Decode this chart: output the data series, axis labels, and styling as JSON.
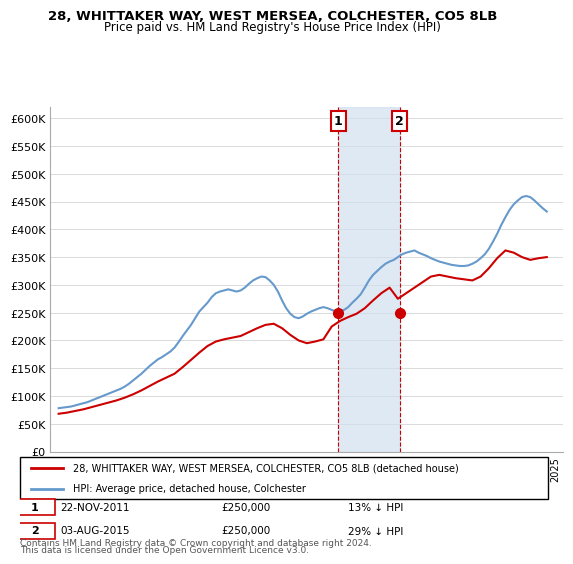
{
  "title": "28, WHITTAKER WAY, WEST MERSEA, COLCHESTER, CO5 8LB",
  "subtitle": "Price paid vs. HM Land Registry's House Price Index (HPI)",
  "ylabel_ticks": [
    "£0",
    "£50K",
    "£100K",
    "£150K",
    "£200K",
    "£250K",
    "£300K",
    "£350K",
    "£400K",
    "£450K",
    "£500K",
    "£550K",
    "£600K"
  ],
  "ytick_vals": [
    0,
    50000,
    100000,
    150000,
    200000,
    250000,
    300000,
    350000,
    400000,
    450000,
    500000,
    550000,
    600000
  ],
  "ylim": [
    0,
    620000
  ],
  "xlim_start": 1994.5,
  "xlim_end": 2025.5,
  "hpi_color": "#6699cc",
  "price_color": "#cc0000",
  "sale1_date": "22-NOV-2011",
  "sale1_price": 250000,
  "sale1_label": "1",
  "sale1_x": 2011.9,
  "sale2_date": "03-AUG-2015",
  "sale2_price": 250000,
  "sale2_label": "2",
  "sale2_x": 2015.6,
  "legend_entry1": "28, WHITTAKER WAY, WEST MERSEA, COLCHESTER, CO5 8LB (detached house)",
  "legend_entry2": "HPI: Average price, detached house, Colchester",
  "footnote1": "Contains HM Land Registry data © Crown copyright and database right 2024.",
  "footnote2": "This data is licensed under the Open Government Licence v3.0.",
  "info1": "1    22-NOV-2011    £250,000    13% ↓ HPI",
  "info2": "2    03-AUG-2015    £250,000    29% ↓ HPI",
  "hpi_data_x": [
    1995,
    1995.25,
    1995.5,
    1995.75,
    1996,
    1996.25,
    1996.5,
    1996.75,
    1997,
    1997.25,
    1997.5,
    1997.75,
    1998,
    1998.25,
    1998.5,
    1998.75,
    1999,
    1999.25,
    1999.5,
    1999.75,
    2000,
    2000.25,
    2000.5,
    2000.75,
    2001,
    2001.25,
    2001.5,
    2001.75,
    2002,
    2002.25,
    2002.5,
    2002.75,
    2003,
    2003.25,
    2003.5,
    2003.75,
    2004,
    2004.25,
    2004.5,
    2004.75,
    2005,
    2005.25,
    2005.5,
    2005.75,
    2006,
    2006.25,
    2006.5,
    2006.75,
    2007,
    2007.25,
    2007.5,
    2007.75,
    2008,
    2008.25,
    2008.5,
    2008.75,
    2009,
    2009.25,
    2009.5,
    2009.75,
    2010,
    2010.25,
    2010.5,
    2010.75,
    2011,
    2011.25,
    2011.5,
    2011.75,
    2012,
    2012.25,
    2012.5,
    2012.75,
    2013,
    2013.25,
    2013.5,
    2013.75,
    2014,
    2014.25,
    2014.5,
    2014.75,
    2015,
    2015.25,
    2015.5,
    2015.75,
    2016,
    2016.25,
    2016.5,
    2016.75,
    2017,
    2017.25,
    2017.5,
    2017.75,
    2018,
    2018.25,
    2018.5,
    2018.75,
    2019,
    2019.25,
    2019.5,
    2019.75,
    2020,
    2020.25,
    2020.5,
    2020.75,
    2021,
    2021.25,
    2021.5,
    2021.75,
    2022,
    2022.25,
    2022.5,
    2022.75,
    2023,
    2023.25,
    2023.5,
    2023.75,
    2024,
    2024.25,
    2024.5
  ],
  "hpi_data_y": [
    78000,
    79000,
    80000,
    81000,
    83000,
    85000,
    87000,
    89000,
    92000,
    95000,
    98000,
    101000,
    104000,
    107000,
    110000,
    113000,
    117000,
    122000,
    128000,
    134000,
    140000,
    147000,
    154000,
    160000,
    166000,
    170000,
    175000,
    180000,
    187000,
    197000,
    208000,
    218000,
    228000,
    240000,
    252000,
    260000,
    268000,
    278000,
    285000,
    288000,
    290000,
    292000,
    290000,
    288000,
    290000,
    295000,
    302000,
    308000,
    312000,
    315000,
    314000,
    308000,
    300000,
    288000,
    272000,
    258000,
    248000,
    242000,
    240000,
    243000,
    248000,
    252000,
    255000,
    258000,
    260000,
    258000,
    255000,
    252000,
    252000,
    255000,
    260000,
    268000,
    275000,
    283000,
    295000,
    308000,
    318000,
    325000,
    332000,
    338000,
    342000,
    345000,
    350000,
    355000,
    358000,
    360000,
    362000,
    358000,
    355000,
    352000,
    348000,
    345000,
    342000,
    340000,
    338000,
    336000,
    335000,
    334000,
    334000,
    335000,
    338000,
    342000,
    348000,
    355000,
    365000,
    378000,
    392000,
    408000,
    422000,
    435000,
    445000,
    452000,
    458000,
    460000,
    458000,
    452000,
    445000,
    438000,
    432000
  ],
  "price_data_x": [
    1995,
    1995.5,
    1996,
    1996.5,
    1997,
    1997.5,
    1998,
    1998.5,
    1999,
    1999.5,
    2000,
    2000.5,
    2001,
    2001.5,
    2002,
    2002.5,
    2003,
    2003.5,
    2004,
    2004.5,
    2005,
    2005.5,
    2006,
    2006.5,
    2007,
    2007.5,
    2008,
    2008.5,
    2009,
    2009.5,
    2010,
    2010.5,
    2011,
    2011.5,
    2012,
    2012.5,
    2013,
    2013.5,
    2014,
    2014.5,
    2015,
    2015.5,
    2016,
    2016.5,
    2017,
    2017.5,
    2018,
    2018.5,
    2019,
    2019.5,
    2020,
    2020.5,
    2021,
    2021.5,
    2022,
    2022.5,
    2023,
    2023.5,
    2024,
    2024.5
  ],
  "price_data_y": [
    68000,
    70000,
    73000,
    76000,
    80000,
    84000,
    88000,
    92000,
    97000,
    103000,
    110000,
    118000,
    126000,
    133000,
    140000,
    152000,
    165000,
    178000,
    190000,
    198000,
    202000,
    205000,
    208000,
    215000,
    222000,
    228000,
    230000,
    222000,
    210000,
    200000,
    195000,
    198000,
    202000,
    225000,
    235000,
    242000,
    248000,
    258000,
    272000,
    285000,
    295000,
    275000,
    285000,
    295000,
    305000,
    315000,
    318000,
    315000,
    312000,
    310000,
    308000,
    315000,
    330000,
    348000,
    362000,
    358000,
    350000,
    345000,
    348000,
    350000
  ],
  "shaded_x1": 2011.9,
  "shaded_x2": 2015.6,
  "background_color": "#ffffff",
  "grid_color": "#cccccc"
}
